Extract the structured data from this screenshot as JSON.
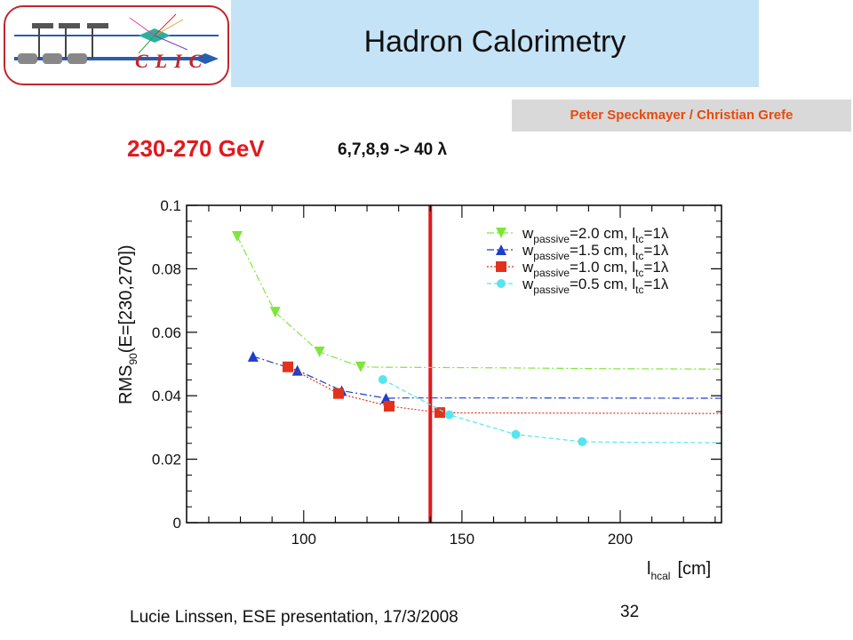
{
  "header": {
    "logo_text": "CLIC",
    "title": "Hadron Calorimetry",
    "authors": "Peter Speckmayer / Christian Grefe"
  },
  "subtitle": {
    "energy": "230-270 GeV",
    "layers": "6,7,8,9 -> 40 λ"
  },
  "footer": {
    "presenter": "Lucie Linssen, ESE presentation, 17/3/2008",
    "page_number": "32"
  },
  "colors": {
    "title_band": "#c5e3f6",
    "author_box": "#d9d9d9",
    "author_text": "#e84a0c",
    "energy_text": "#e3181c",
    "marker_line": "#e3181c"
  },
  "chart_data": {
    "type": "scatter",
    "xlabel_main": "l",
    "xlabel_sub": "hcal",
    "xlabel_unit": "[cm]",
    "ylabel_main": "RMS",
    "ylabel_sub": "90",
    "ylabel_rest": "(E=[230,270])",
    "xlim": [
      63,
      232
    ],
    "ylim": [
      0,
      0.1
    ],
    "x_ticks": [
      100,
      150,
      200
    ],
    "y_ticks": [
      0,
      0.02,
      0.04,
      0.06,
      0.08,
      0.1
    ],
    "y_tick_labels": [
      "0",
      "0.02",
      "0.04",
      "0.06",
      "0.08",
      "0.1"
    ],
    "vertical_line_x": 140,
    "legend_position": "top-right",
    "series": [
      {
        "name_main": "w",
        "name_sub": "passive",
        "name_mid": "=2.0 cm, l",
        "name_sub2": "tc",
        "name_end": "=1λ",
        "color": "#7ee63a",
        "marker": "triangle-down",
        "line": "dashdot",
        "points": [
          [
            79,
            0.0902
          ],
          [
            91,
            0.0663
          ],
          [
            105,
            0.0538
          ],
          [
            118,
            0.0491
          ]
        ],
        "tail": [
          [
            123,
            0.049
          ],
          [
            160,
            0.0488
          ],
          [
            200,
            0.0485
          ],
          [
            232,
            0.0484
          ]
        ]
      },
      {
        "name_main": "w",
        "name_sub": "passive",
        "name_mid": "=1.5 cm, l",
        "name_sub2": "tc",
        "name_end": "=1λ",
        "color": "#1e3ec9",
        "marker": "triangle-up",
        "line": "dashdot",
        "points": [
          [
            84,
            0.0524
          ],
          [
            98,
            0.048
          ],
          [
            112,
            0.0416
          ],
          [
            126,
            0.0392
          ]
        ],
        "tail": [
          [
            132,
            0.0393
          ],
          [
            170,
            0.0393
          ],
          [
            232,
            0.0392
          ]
        ]
      },
      {
        "name_main": "w",
        "name_sub": "passive",
        "name_mid": "=1.0 cm, l",
        "name_sub2": "tc",
        "name_end": "=1λ",
        "color": "#e3321c",
        "marker": "square",
        "line": "dotted",
        "points": [
          [
            95,
            0.0491
          ],
          [
            111,
            0.0407
          ],
          [
            127,
            0.0367
          ],
          [
            143,
            0.0347
          ]
        ],
        "tail": [
          [
            150,
            0.0346
          ],
          [
            190,
            0.0345
          ],
          [
            232,
            0.0344
          ]
        ]
      },
      {
        "name_main": "w",
        "name_sub": "passive",
        "name_mid": "=0.5 cm, l",
        "name_sub2": "tc",
        "name_end": "=1λ",
        "color": "#57e4f0",
        "marker": "circle",
        "line": "dashed",
        "points": [
          [
            125,
            0.0451
          ],
          [
            146,
            0.034
          ],
          [
            167,
            0.0278
          ],
          [
            188,
            0.0255
          ]
        ],
        "tail": [
          [
            205,
            0.0253
          ],
          [
            232,
            0.0252
          ]
        ]
      }
    ]
  }
}
